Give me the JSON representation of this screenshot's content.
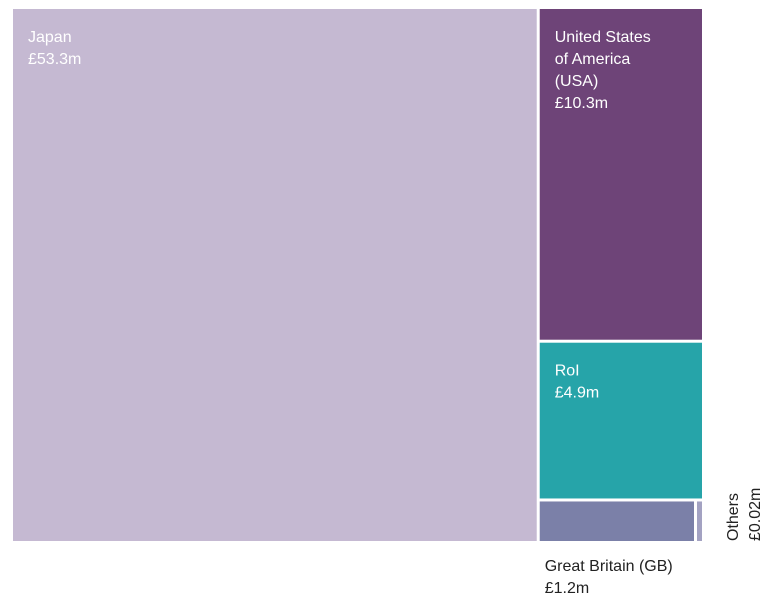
{
  "chart_data": {
    "type": "treemap",
    "title": "",
    "unit": "£m",
    "items": [
      {
        "name": "Japan",
        "value": 53.3,
        "value_label": "£53.3m",
        "color": "#c5b9d2",
        "label_lines": [
          "Japan",
          "£53.3m"
        ]
      },
      {
        "name": "United States of America (USA)",
        "value": 10.3,
        "value_label": "£10.3m",
        "color": "#6e4478",
        "label_lines": [
          "United States",
          "of America",
          "(USA)",
          "£10.3m"
        ]
      },
      {
        "name": "RoI",
        "value": 4.9,
        "value_label": "£4.9m",
        "color": "#26a4a9",
        "label_lines": [
          "RoI",
          "£4.9m"
        ]
      },
      {
        "name": "Great Britain (GB)",
        "value": 1.2,
        "value_label": "£1.2m",
        "color": "#7b80a8",
        "label_lines": [
          "Great Britain (GB)",
          "£1.2m"
        ]
      },
      {
        "name": "Others",
        "value": 0.02,
        "value_label": "£0.02m",
        "color": "#a3a2c2",
        "label_lines": [
          "Others",
          "£0.02m"
        ]
      }
    ]
  }
}
